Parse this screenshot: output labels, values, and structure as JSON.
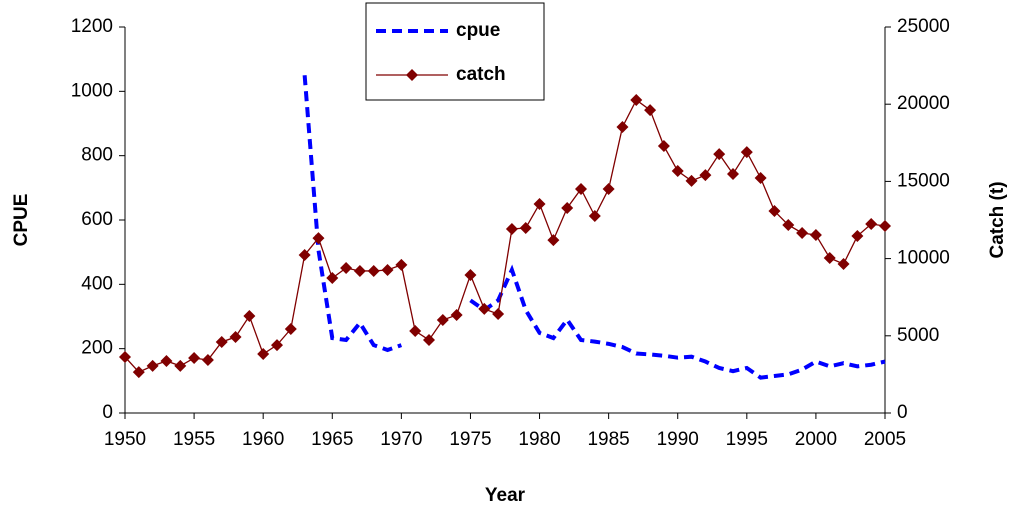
{
  "chart_data": {
    "type": "line",
    "x_label": "Year",
    "y_label": "CPUE",
    "y2_label": "Catch (t)",
    "x": [
      1950,
      1951,
      1952,
      1953,
      1954,
      1955,
      1956,
      1957,
      1958,
      1959,
      1960,
      1961,
      1962,
      1963,
      1964,
      1965,
      1966,
      1967,
      1968,
      1969,
      1970,
      1971,
      1972,
      1973,
      1974,
      1975,
      1976,
      1977,
      1978,
      1979,
      1980,
      1981,
      1982,
      1983,
      1984,
      1985,
      1986,
      1987,
      1988,
      1989,
      1990,
      1991,
      1992,
      1993,
      1994,
      1995,
      1996,
      1997,
      1998,
      1999,
      2000,
      2001,
      2002,
      2003,
      2004,
      2005
    ],
    "series": [
      {
        "name": "cpue",
        "color": "#0000ff",
        "line_style": "dashed",
        "axis": "y",
        "values": [
          null,
          null,
          null,
          null,
          null,
          null,
          null,
          null,
          null,
          null,
          null,
          null,
          null,
          1050,
          507,
          233,
          227,
          280,
          211,
          196,
          211,
          null,
          null,
          null,
          null,
          350,
          320,
          350,
          445,
          320,
          249,
          233,
          290,
          227,
          222,
          215,
          205,
          185,
          182,
          178,
          172,
          175,
          160,
          140,
          130,
          140,
          110,
          115,
          120,
          135,
          160,
          145,
          155,
          145,
          150,
          160
        ]
      },
      {
        "name": "catch",
        "color": "#800000",
        "line_style": "solid",
        "marker": "diamond",
        "axis": "y2",
        "values": [
          3630,
          2650,
          3050,
          3370,
          3050,
          3560,
          3430,
          4600,
          4920,
          6280,
          3820,
          4400,
          5440,
          10230,
          11330,
          8740,
          9390,
          9200,
          9200,
          9260,
          9590,
          5310,
          4730,
          6020,
          6350,
          8940,
          6740,
          6410,
          11920,
          11980,
          13540,
          11200,
          13280,
          14510,
          12760,
          14510,
          18520,
          20270,
          19620,
          17290,
          15670,
          15030,
          15410,
          16770,
          15480,
          16900,
          15220,
          13080,
          12180,
          11660,
          11530,
          10040,
          9650,
          11460,
          12240,
          12110
        ]
      }
    ],
    "xlim": [
      1950,
      2005
    ],
    "xticks": [
      1950,
      1955,
      1960,
      1965,
      1970,
      1975,
      1980,
      1985,
      1990,
      1995,
      2000,
      2005
    ],
    "ylim": [
      0,
      1200
    ],
    "yticks": [
      0,
      200,
      400,
      600,
      800,
      1000,
      1200
    ],
    "y2lim": [
      0,
      25000
    ],
    "y2ticks": [
      0,
      5000,
      10000,
      15000,
      20000,
      25000
    ],
    "legend": "upper center",
    "grid": false
  }
}
